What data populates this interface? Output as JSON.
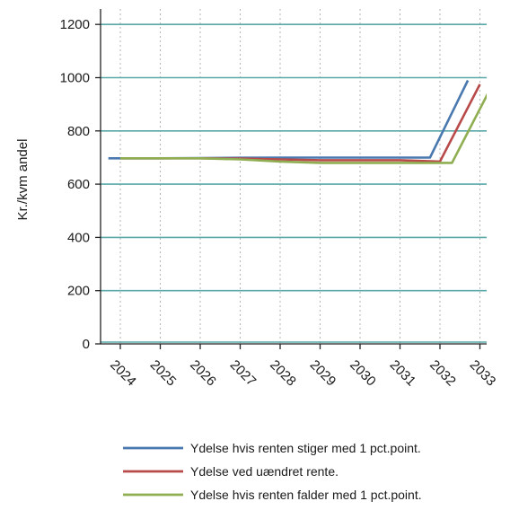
{
  "chart_data": {
    "type": "line",
    "ylabel": "Kr./kvm andel",
    "xlabel": "",
    "title": "",
    "ylim": [
      0,
      1250
    ],
    "yticks": [
      0,
      200,
      400,
      600,
      800,
      1000,
      1200
    ],
    "categories": [
      "2024",
      "2025",
      "2026",
      "2027",
      "2028",
      "2029",
      "2030",
      "2031",
      "2032",
      "2033"
    ],
    "grid": "horizontal solid, vertical dotted",
    "legend_position": "bottom",
    "series": [
      {
        "name": "Ydelse hvis renten stiger med 1 pct.point.",
        "color": "#4a79b0",
        "points": [
          [
            -0.3,
            697
          ],
          [
            1,
            697
          ],
          [
            2,
            698
          ],
          [
            3,
            699
          ],
          [
            4,
            700
          ],
          [
            5,
            700
          ],
          [
            6,
            700
          ],
          [
            7,
            700
          ],
          [
            7.75,
            700
          ],
          [
            8.7,
            990
          ]
        ]
      },
      {
        "name": "Ydelse ved uændret rente.",
        "color": "#b84a4a",
        "points": [
          [
            0,
            697
          ],
          [
            1,
            697
          ],
          [
            2,
            697
          ],
          [
            3,
            696
          ],
          [
            4,
            693
          ],
          [
            5,
            690
          ],
          [
            6,
            690
          ],
          [
            7,
            690
          ],
          [
            8.0,
            685
          ],
          [
            9.0,
            975
          ]
        ]
      },
      {
        "name": "Ydelse hvis renten falder med 1 pct.point.",
        "color": "#8fae52",
        "points": [
          [
            0,
            697
          ],
          [
            1,
            697
          ],
          [
            2,
            697
          ],
          [
            3,
            693
          ],
          [
            4,
            685
          ],
          [
            5,
            680
          ],
          [
            6,
            680
          ],
          [
            7,
            680
          ],
          [
            8.3,
            680
          ],
          [
            9.25,
            955
          ]
        ]
      }
    ]
  }
}
